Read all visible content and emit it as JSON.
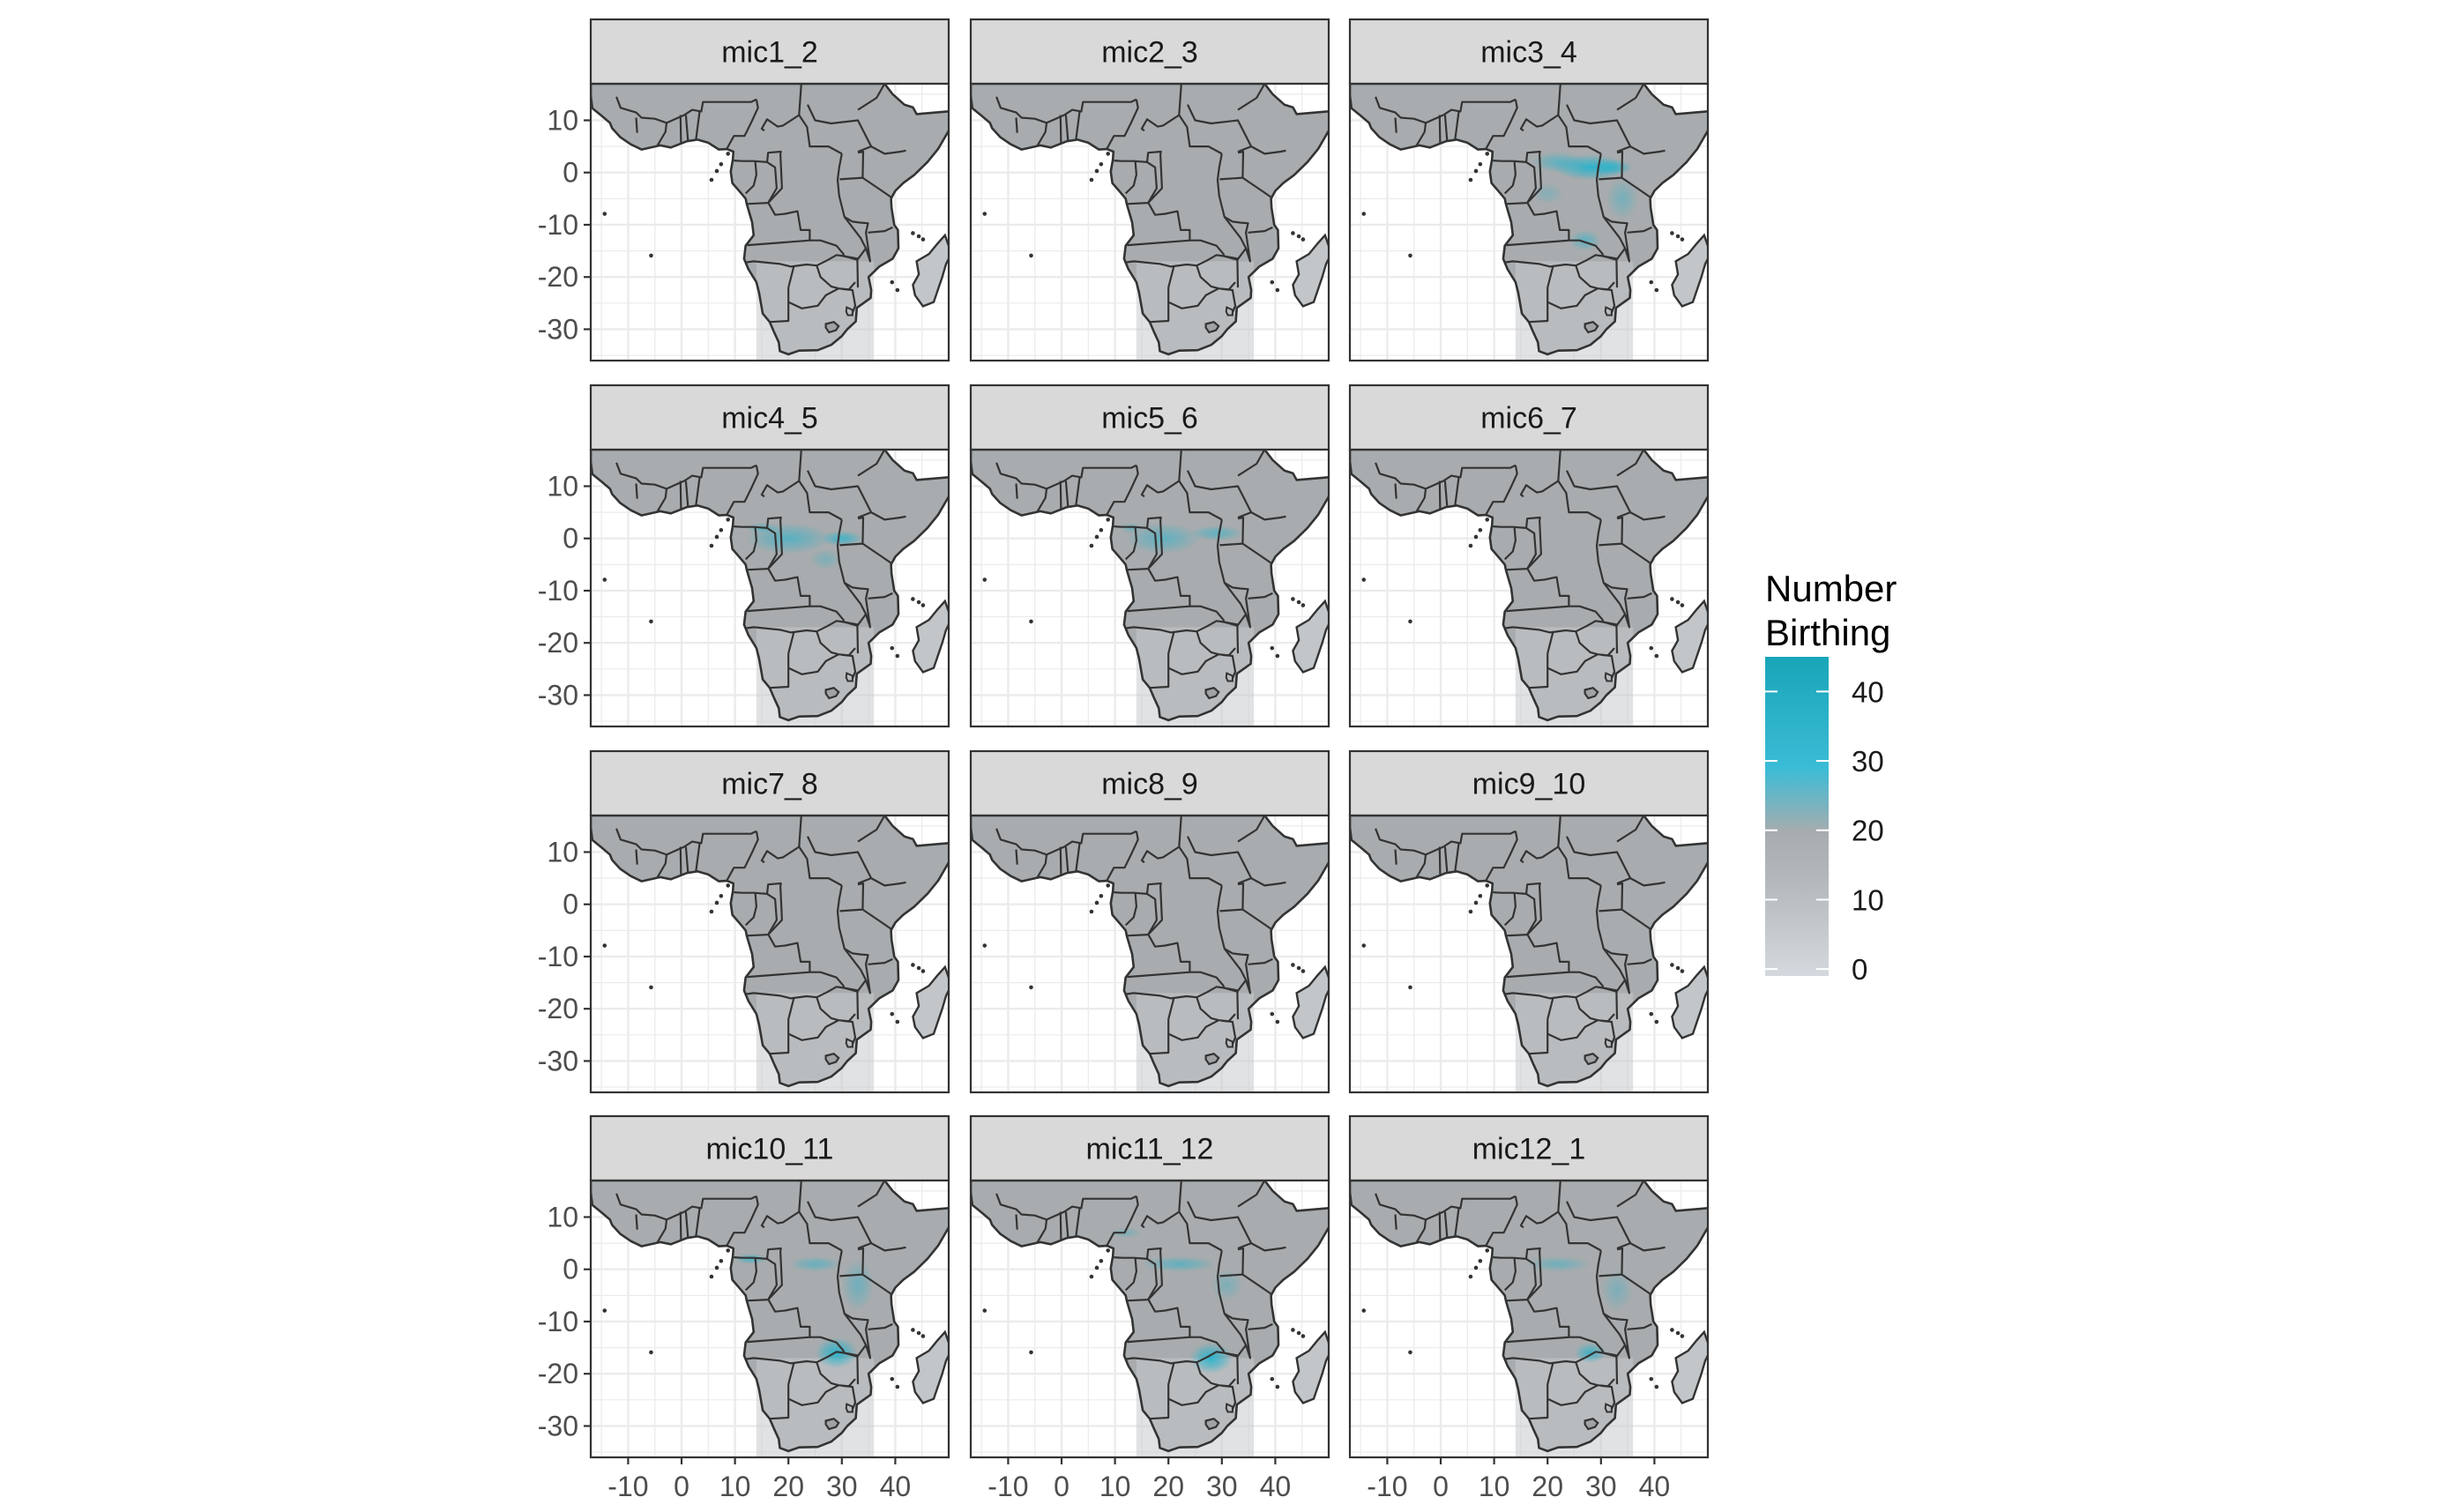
{
  "figure": {
    "type": "faceted choropleth map",
    "panels": [
      "mic1_2",
      "mic2_3",
      "mic3_4",
      "mic4_5",
      "mic5_6",
      "mic6_7",
      "mic7_8",
      "mic8_9",
      "mic9_10",
      "mic10_11",
      "mic11_12",
      "mic12_1"
    ],
    "layout": {
      "rows": 4,
      "cols": 3
    },
    "x_ticks": [
      "-10",
      "0",
      "10",
      "20",
      "30",
      "40"
    ],
    "y_ticks": [
      "10",
      "0",
      "-10",
      "-20",
      "-30"
    ],
    "x_tick_values": [
      -10,
      0,
      10,
      20,
      30,
      40
    ],
    "y_tick_values": [
      10,
      0,
      -10,
      -20,
      -30
    ],
    "xlim": [
      -17,
      50
    ],
    "ylim": [
      -36,
      17
    ],
    "grid": true,
    "facet_strip_color": "#d9d9d9",
    "panel_border_color": "#333333",
    "land_fill_color": "#a8acae",
    "highlight_color": "#1fb3cc",
    "hotspots": {
      "mic3_4": [
        [
          28,
          1,
          7,
          2.5,
          0.85
        ],
        [
          22,
          2,
          5,
          2,
          0.5
        ],
        [
          32,
          1,
          4,
          1.5,
          0.7
        ],
        [
          27,
          -13,
          3,
          2,
          0.5
        ],
        [
          34,
          -5,
          3,
          4,
          0.35
        ],
        [
          20,
          -4,
          3,
          2,
          0.25
        ]
      ],
      "mic4_5": [
        [
          20,
          0,
          8,
          3,
          0.55
        ],
        [
          30,
          0,
          4,
          1.5,
          0.7
        ],
        [
          15,
          2,
          3,
          1,
          0.45
        ],
        [
          27,
          -4,
          3,
          2,
          0.3
        ]
      ],
      "mic5_6": [
        [
          19,
          0,
          7,
          3,
          0.5
        ],
        [
          29,
          1,
          5,
          1.5,
          0.5
        ],
        [
          13,
          2,
          2,
          1,
          0.4
        ]
      ],
      "mic10_11": [
        [
          29,
          -16,
          4,
          3,
          0.85
        ],
        [
          13,
          2,
          3,
          1,
          0.65
        ],
        [
          25,
          1,
          5,
          1.5,
          0.45
        ],
        [
          33,
          -3,
          3,
          5,
          0.4
        ]
      ],
      "mic11_12": [
        [
          28,
          -17,
          4,
          3,
          0.85
        ],
        [
          22,
          1,
          7,
          1.5,
          0.5
        ],
        [
          12,
          7,
          3,
          1,
          0.3
        ],
        [
          31,
          -3,
          3,
          3,
          0.3
        ]
      ],
      "mic12_1": [
        [
          28,
          -16,
          3,
          2,
          0.7
        ],
        [
          22,
          1,
          6,
          1.5,
          0.4
        ],
        [
          33,
          -4,
          3,
          4,
          0.3
        ]
      ]
    }
  },
  "legend": {
    "title_line1": "Number",
    "title_line2": "Birthing",
    "ticks": [
      "40",
      "30",
      "20",
      "10",
      "0"
    ],
    "tick_values": [
      40,
      30,
      20,
      10,
      0
    ],
    "range": [
      -1,
      45
    ],
    "colors": {
      "low": "#d4d9de",
      "mid": "#a8acae",
      "high": "#19a5b8"
    }
  }
}
